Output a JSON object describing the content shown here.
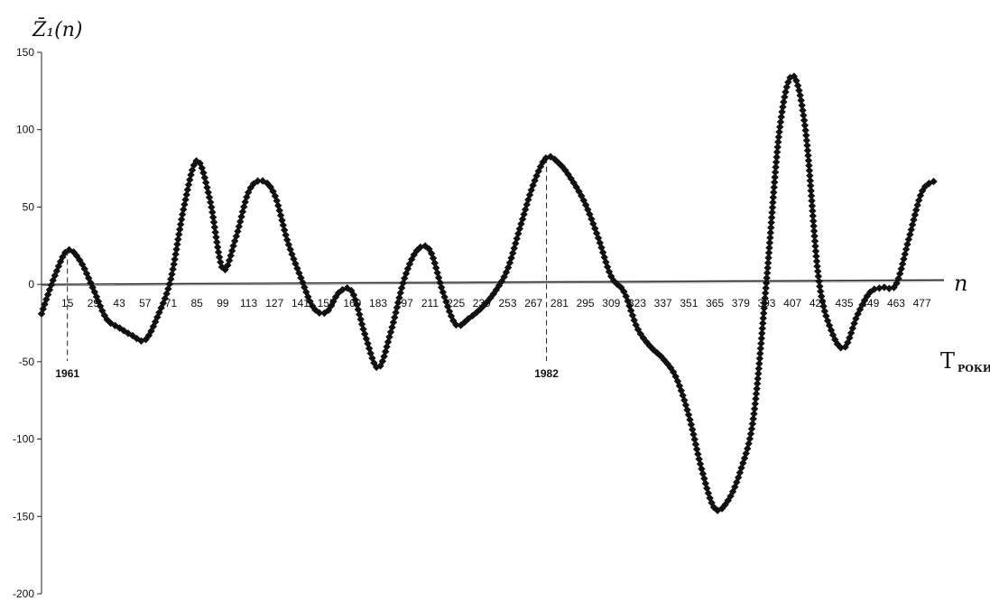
{
  "chart_data": {
    "type": "line",
    "title": "",
    "ylabel": "Z̄₁(n)",
    "xlabel_n": "n",
    "xlabel_t": "T",
    "xlabel_t_sub": "РОКИ",
    "ylim": [
      -200,
      150
    ],
    "yticks": [
      150,
      100,
      50,
      0,
      -50,
      -100,
      -150,
      -200
    ],
    "ytick_labels": [
      "150",
      "100",
      "50",
      "0",
      "-50",
      "-100",
      "-150",
      "-200"
    ],
    "xticks": [
      15,
      29,
      43,
      57,
      71,
      85,
      99,
      113,
      127,
      141,
      155,
      169,
      183,
      197,
      211,
      225,
      239,
      253,
      267,
      281,
      295,
      309,
      323,
      337,
      351,
      365,
      379,
      393,
      407,
      421,
      435,
      449,
      463,
      477
    ],
    "xtick_labels": [
      "15",
      "29",
      "43",
      "57",
      "71",
      "85",
      "99",
      "113",
      "127",
      "141",
      "155",
      "169",
      "183",
      "197",
      "211",
      "225",
      "239",
      "253",
      "267",
      "281",
      "295",
      "309",
      "323",
      "337",
      "351",
      "365",
      "379",
      "393",
      "407",
      "421",
      "435",
      "449",
      "463",
      "477"
    ],
    "xlim": [
      1,
      484
    ],
    "grid": false,
    "legend": "none",
    "marker": "diamond",
    "line_color": "#111111",
    "annotations": [
      {
        "text": "1961",
        "x": 15
      },
      {
        "text": "1982",
        "x": 274
      }
    ],
    "series": [
      {
        "x": [
          1,
          8,
          15,
          22,
          29,
          36,
          43,
          50,
          57,
          64,
          71,
          78,
          85,
          92,
          99,
          106,
          113,
          120,
          127,
          134,
          141,
          148,
          155,
          162,
          169,
          176,
          183,
          190,
          197,
          204,
          211,
          218,
          225,
          232,
          239,
          246,
          253,
          260,
          267,
          274,
          281,
          288,
          295,
          302,
          309,
          316,
          323,
          330,
          337,
          344,
          351,
          358,
          365,
          372,
          379,
          386,
          393,
          400,
          407,
          414,
          421,
          428,
          435,
          442,
          449,
          456,
          463,
          470,
          477,
          484
        ],
        "values": [
          -19,
          5,
          22,
          15,
          -3,
          -22,
          -28,
          -33,
          -36,
          -20,
          4,
          50,
          80,
          55,
          10,
          30,
          60,
          67,
          58,
          28,
          5,
          -15,
          -18,
          -5,
          -5,
          -33,
          -54,
          -30,
          3,
          22,
          22,
          -5,
          -26,
          -22,
          -15,
          -5,
          10,
          38,
          65,
          82,
          78,
          67,
          52,
          30,
          5,
          -5,
          -28,
          -40,
          -48,
          -60,
          -85,
          -120,
          -145,
          -140,
          -120,
          -85,
          3,
          100,
          135,
          100,
          5,
          -30,
          -41,
          -20,
          -5,
          -2,
          0,
          30,
          60,
          67
        ]
      }
    ]
  }
}
